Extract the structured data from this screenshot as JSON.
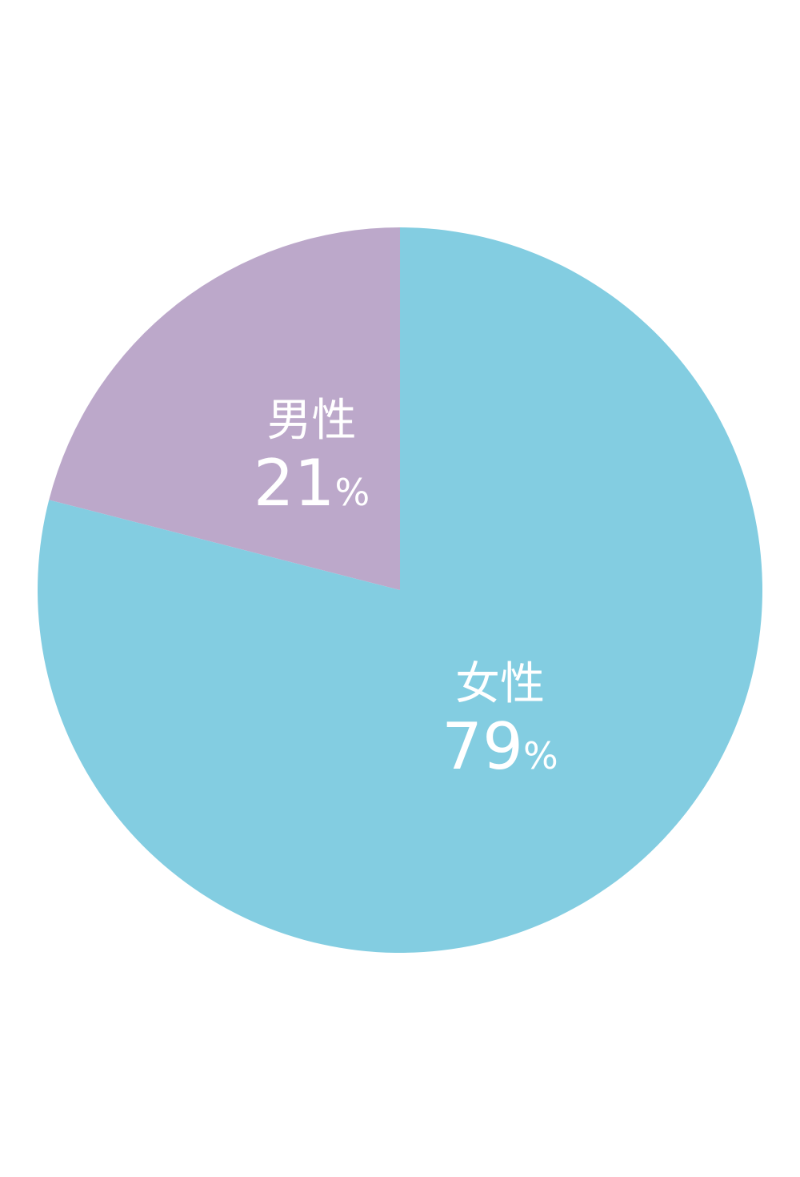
{
  "chart_data": {
    "type": "pie",
    "start": "12 o'clock",
    "slices": [
      {
        "label": "男性",
        "value": 21,
        "unit": "%",
        "color": "#BCA8CA"
      },
      {
        "label": "女性",
        "value": 79,
        "unit": "%",
        "color": "#83CDE1"
      }
    ]
  }
}
